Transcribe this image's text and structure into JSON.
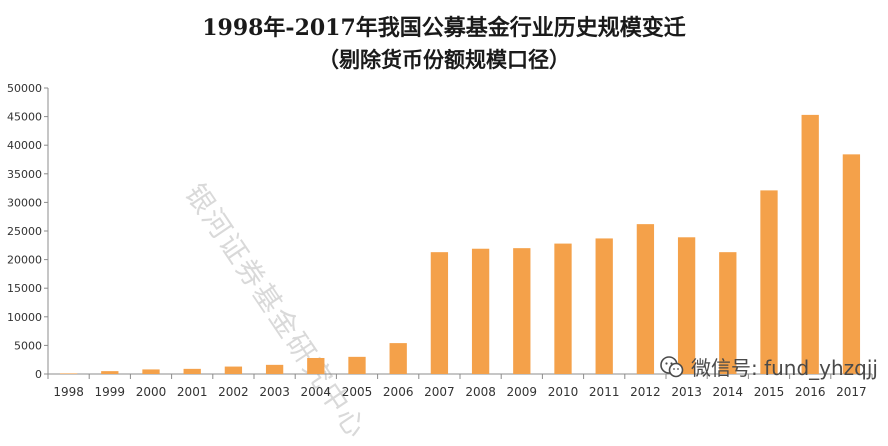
{
  "chart_data": {
    "type": "bar",
    "title": "1998年-2017年我国公募基金行业历史规模变迁",
    "subtitle": "（剔除货币份额规模口径）",
    "categories": [
      "1998",
      "1999",
      "2000",
      "2001",
      "2002",
      "2003",
      "2004",
      "2005",
      "2006",
      "2007",
      "2008",
      "2009",
      "2010",
      "2011",
      "2012",
      "2013",
      "2014",
      "2015",
      "2016",
      "2017"
    ],
    "values": [
      100,
      500,
      800,
      900,
      1300,
      1600,
      2800,
      3000,
      5400,
      21300,
      21900,
      22000,
      22800,
      23700,
      26200,
      23900,
      21300,
      32100,
      45300,
      38400
    ],
    "ylim": [
      0,
      50000
    ],
    "yticks": [
      0,
      5000,
      10000,
      15000,
      20000,
      25000,
      30000,
      35000,
      40000,
      45000,
      50000
    ],
    "xlabel": "",
    "ylabel": "",
    "grid": false,
    "bar_color": "#f4a14a"
  },
  "watermark": "银河证券基金研究中心",
  "wechat": {
    "icon": "wechat-icon",
    "label": "微信号: fund_yhzqjj"
  }
}
